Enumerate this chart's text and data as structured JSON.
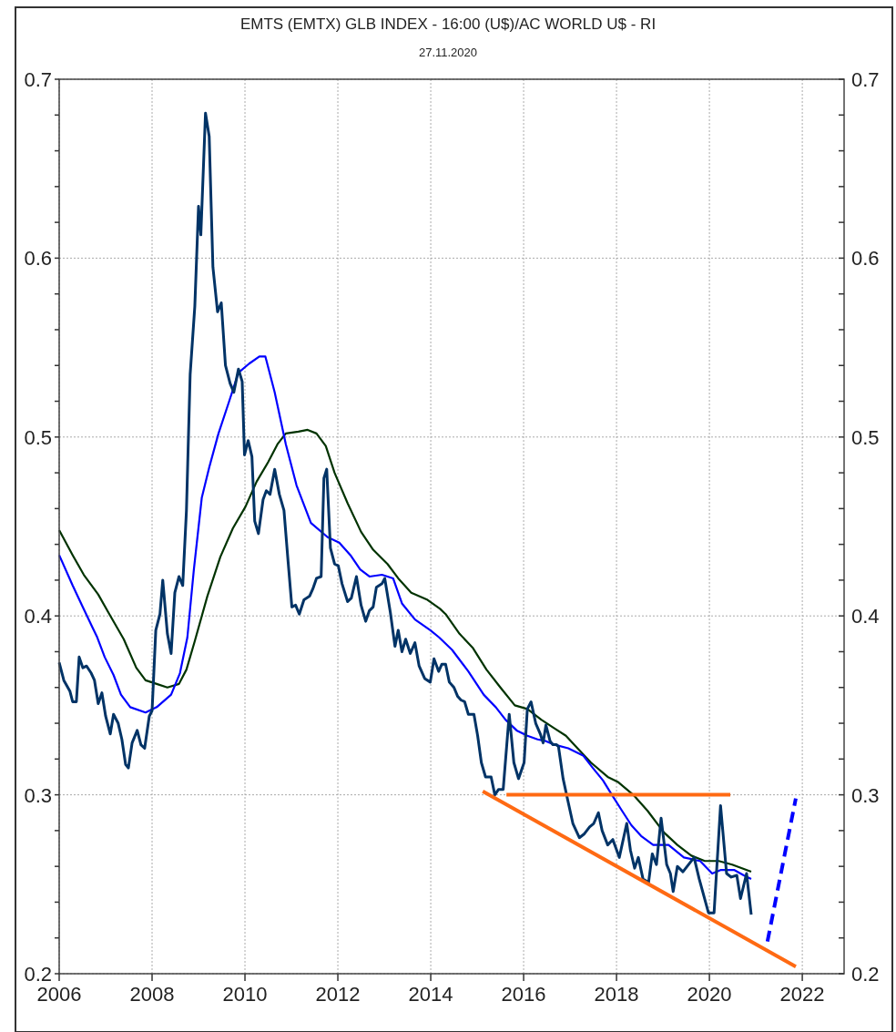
{
  "chart_data": {
    "type": "line",
    "title": "EMTS (EMTX) GLB INDEX - 16:00 (U$)/AC WORLD U$ - RI",
    "subtitle": "27.11.2020",
    "xlim": [
      2006,
      2022.9
    ],
    "xticks": [
      2006,
      2008,
      2010,
      2012,
      2014,
      2016,
      2018,
      2020,
      2022
    ],
    "ylim": [
      0.2,
      0.7
    ],
    "yticks": [
      {
        "value": 0.2,
        "label": "0.2"
      },
      {
        "value": 0.22,
        "label": null
      },
      {
        "value": 0.24,
        "label": null
      },
      {
        "value": 0.26,
        "label": null
      },
      {
        "value": 0.28,
        "label": null
      },
      {
        "value": 0.3,
        "label": "0.3"
      },
      {
        "value": 0.32,
        "label": null
      },
      {
        "value": 0.34,
        "label": null
      },
      {
        "value": 0.36,
        "label": null
      },
      {
        "value": 0.38,
        "label": null
      },
      {
        "value": 0.4,
        "label": "0.4"
      },
      {
        "value": 0.42,
        "label": null
      },
      {
        "value": 0.44,
        "label": null
      },
      {
        "value": 0.46,
        "label": null
      },
      {
        "value": 0.48,
        "label": null
      },
      {
        "value": 0.5,
        "label": "0.5"
      },
      {
        "value": 0.52,
        "label": null
      },
      {
        "value": 0.54,
        "label": null
      },
      {
        "value": 0.56,
        "label": null
      },
      {
        "value": 0.58,
        "label": null
      },
      {
        "value": 0.6,
        "label": "0.6"
      },
      {
        "value": 0.62,
        "label": null
      },
      {
        "value": 0.64,
        "label": null
      },
      {
        "value": 0.66,
        "label": null
      },
      {
        "value": 0.68,
        "label": null
      },
      {
        "value": 0.7,
        "label": "0.7"
      }
    ],
    "y2lim": [
      0.2,
      0.7
    ],
    "y2ticks": [
      {
        "value": 0.2,
        "label": "0.2"
      },
      {
        "value": 0.22,
        "label": null
      },
      {
        "value": 0.24,
        "label": null
      },
      {
        "value": 0.26,
        "label": null
      },
      {
        "value": 0.28,
        "label": null
      },
      {
        "value": 0.3,
        "label": "0.3"
      },
      {
        "value": 0.32,
        "label": null
      },
      {
        "value": 0.34,
        "label": null
      },
      {
        "value": 0.36,
        "label": null
      },
      {
        "value": 0.38,
        "label": null
      },
      {
        "value": 0.4,
        "label": "0.4"
      },
      {
        "value": 0.42,
        "label": null
      },
      {
        "value": 0.44,
        "label": null
      },
      {
        "value": 0.46,
        "label": null
      },
      {
        "value": 0.48,
        "label": null
      },
      {
        "value": 0.5,
        "label": "0.5"
      },
      {
        "value": 0.52,
        "label": null
      },
      {
        "value": 0.54,
        "label": null
      },
      {
        "value": 0.56,
        "label": null
      },
      {
        "value": 0.58,
        "label": null
      },
      {
        "value": 0.6,
        "label": "0.6"
      },
      {
        "value": 0.62,
        "label": null
      },
      {
        "value": 0.64,
        "label": null
      },
      {
        "value": 0.66,
        "label": null
      },
      {
        "value": 0.68,
        "label": null
      },
      {
        "value": 0.7,
        "label": "0.7"
      }
    ],
    "grid": true,
    "marker": "none",
    "series": [
      {
        "color": "#003300",
        "x": [
          2006.0,
          2006.29,
          2006.53,
          2006.84,
          2007.08,
          2007.39,
          2007.66,
          2007.86,
          2008.1,
          2008.33,
          2008.58,
          2008.74,
          2008.92,
          2009.19,
          2009.47,
          2009.74,
          2010.01,
          2010.25,
          2010.5,
          2010.7,
          2010.88,
          2011.15,
          2011.35,
          2011.54,
          2011.74,
          2011.93,
          2012.21,
          2012.5,
          2012.76,
          2013.07,
          2013.3,
          2013.58,
          2013.93,
          2014.2,
          2014.32,
          2014.62,
          2014.91,
          2015.2,
          2015.5,
          2015.81,
          2016.08,
          2016.38,
          2016.67,
          2016.91,
          2017.16,
          2017.45,
          2017.81,
          2018.04,
          2018.36,
          2018.67,
          2019.02,
          2019.31,
          2019.61,
          2019.9,
          2020.2,
          2020.49,
          2020.9
        ],
        "values": [
          0.448,
          0.434,
          0.423,
          0.412,
          0.401,
          0.387,
          0.371,
          0.364,
          0.362,
          0.36,
          0.362,
          0.37,
          0.386,
          0.411,
          0.433,
          0.449,
          0.461,
          0.475,
          0.486,
          0.496,
          0.502,
          0.503,
          0.504,
          0.502,
          0.495,
          0.48,
          0.463,
          0.447,
          0.437,
          0.429,
          0.421,
          0.413,
          0.409,
          0.404,
          0.401,
          0.39,
          0.382,
          0.37,
          0.36,
          0.35,
          0.348,
          0.342,
          0.337,
          0.333,
          0.326,
          0.318,
          0.31,
          0.307,
          0.3,
          0.291,
          0.279,
          0.272,
          0.266,
          0.263,
          0.263,
          0.261,
          0.257
        ]
      },
      {
        "color": "#0000ff",
        "x": [
          2006.0,
          2006.29,
          2006.49,
          2006.69,
          2006.82,
          2006.98,
          2007.17,
          2007.33,
          2007.53,
          2007.86,
          2008.1,
          2008.41,
          2008.6,
          2008.76,
          2008.9,
          2009.07,
          2009.23,
          2009.43,
          2009.66,
          2009.86,
          2010.09,
          2010.31,
          2010.44,
          2010.64,
          2010.88,
          2011.11,
          2011.42,
          2011.78,
          2012.03,
          2012.27,
          2012.48,
          2012.68,
          2012.95,
          2013.19,
          2013.38,
          2013.66,
          2013.99,
          2014.18,
          2014.46,
          2014.81,
          2015.14,
          2015.4,
          2015.61,
          2015.85,
          2016.08,
          2016.3,
          2016.48,
          2016.67,
          2016.96,
          2017.28,
          2017.49,
          2017.71,
          2017.9,
          2018.12,
          2018.32,
          2018.53,
          2018.79,
          2019.12,
          2019.45,
          2019.8,
          2020.06,
          2020.25,
          2020.53,
          2020.74,
          2020.9
        ],
        "values": [
          0.434,
          0.417,
          0.406,
          0.395,
          0.388,
          0.377,
          0.367,
          0.356,
          0.349,
          0.346,
          0.349,
          0.356,
          0.368,
          0.388,
          0.426,
          0.466,
          0.483,
          0.502,
          0.52,
          0.536,
          0.541,
          0.545,
          0.545,
          0.525,
          0.496,
          0.473,
          0.452,
          0.444,
          0.441,
          0.434,
          0.426,
          0.422,
          0.423,
          0.421,
          0.407,
          0.398,
          0.392,
          0.388,
          0.381,
          0.369,
          0.356,
          0.349,
          0.342,
          0.336,
          0.333,
          0.331,
          0.33,
          0.328,
          0.326,
          0.322,
          0.315,
          0.308,
          0.3,
          0.291,
          0.283,
          0.277,
          0.272,
          0.272,
          0.265,
          0.263,
          0.256,
          0.258,
          0.258,
          0.255,
          0.253
        ]
      },
      {
        "color": "#003366",
        "x": [
          2006.0,
          2006.1,
          2006.23,
          2006.29,
          2006.37,
          2006.43,
          2006.51,
          2006.59,
          2006.69,
          2006.76,
          2006.84,
          2006.92,
          2007.0,
          2007.1,
          2007.17,
          2007.27,
          2007.35,
          2007.43,
          2007.49,
          2007.57,
          2007.68,
          2007.76,
          2007.84,
          2007.94,
          2008.0,
          2008.08,
          2008.17,
          2008.23,
          2008.33,
          2008.41,
          2008.49,
          2008.58,
          2008.66,
          2008.74,
          2008.82,
          2008.92,
          2009.0,
          2009.05,
          2009.15,
          2009.23,
          2009.31,
          2009.41,
          2009.49,
          2009.58,
          2009.68,
          2009.76,
          2009.86,
          2009.94,
          2009.99,
          2010.07,
          2010.15,
          2010.21,
          2010.29,
          2010.39,
          2010.46,
          2010.54,
          2010.64,
          2010.74,
          2010.84,
          2010.93,
          2011.01,
          2011.09,
          2011.17,
          2011.27,
          2011.39,
          2011.46,
          2011.54,
          2011.64,
          2011.7,
          2011.76,
          2011.84,
          2011.93,
          2012.01,
          2012.09,
          2012.21,
          2012.29,
          2012.4,
          2012.5,
          2012.6,
          2012.68,
          2012.76,
          2012.83,
          2012.95,
          2013.01,
          2013.13,
          2013.23,
          2013.3,
          2013.38,
          2013.46,
          2013.56,
          2013.66,
          2013.75,
          2013.87,
          2013.99,
          2014.07,
          2014.17,
          2014.24,
          2014.32,
          2014.4,
          2014.5,
          2014.58,
          2014.65,
          2014.73,
          2014.81,
          2014.93,
          2015.01,
          2015.09,
          2015.18,
          2015.3,
          2015.38,
          2015.46,
          2015.56,
          2015.69,
          2015.79,
          2015.89,
          2016.01,
          2016.08,
          2016.16,
          2016.26,
          2016.36,
          2016.42,
          2016.48,
          2016.57,
          2016.63,
          2016.71,
          2016.75,
          2016.85,
          2016.95,
          2017.06,
          2017.2,
          2017.3,
          2017.42,
          2017.51,
          2017.61,
          2017.69,
          2017.81,
          2017.92,
          2018.06,
          2018.22,
          2018.3,
          2018.39,
          2018.47,
          2018.57,
          2018.69,
          2018.77,
          2018.86,
          2018.96,
          2019.08,
          2019.16,
          2019.22,
          2019.31,
          2019.43,
          2019.67,
          2019.78,
          2019.98,
          2020.1,
          2020.24,
          2020.37,
          2020.47,
          2020.59,
          2020.67,
          2020.8,
          2020.9
        ],
        "values": [
          0.374,
          0.364,
          0.358,
          0.352,
          0.352,
          0.377,
          0.371,
          0.372,
          0.368,
          0.364,
          0.351,
          0.357,
          0.344,
          0.334,
          0.345,
          0.34,
          0.331,
          0.317,
          0.315,
          0.329,
          0.336,
          0.328,
          0.326,
          0.344,
          0.347,
          0.392,
          0.401,
          0.42,
          0.39,
          0.379,
          0.413,
          0.422,
          0.417,
          0.459,
          0.535,
          0.573,
          0.629,
          0.613,
          0.681,
          0.668,
          0.595,
          0.57,
          0.575,
          0.54,
          0.53,
          0.525,
          0.538,
          0.531,
          0.49,
          0.498,
          0.489,
          0.453,
          0.446,
          0.465,
          0.47,
          0.468,
          0.482,
          0.468,
          0.459,
          0.43,
          0.405,
          0.406,
          0.401,
          0.409,
          0.411,
          0.415,
          0.421,
          0.422,
          0.477,
          0.482,
          0.438,
          0.429,
          0.428,
          0.418,
          0.408,
          0.41,
          0.422,
          0.406,
          0.397,
          0.403,
          0.405,
          0.416,
          0.418,
          0.421,
          0.402,
          0.383,
          0.392,
          0.38,
          0.387,
          0.379,
          0.385,
          0.372,
          0.365,
          0.363,
          0.376,
          0.369,
          0.373,
          0.373,
          0.363,
          0.36,
          0.355,
          0.353,
          0.352,
          0.345,
          0.345,
          0.333,
          0.318,
          0.31,
          0.31,
          0.3,
          0.303,
          0.303,
          0.345,
          0.318,
          0.309,
          0.318,
          0.348,
          0.352,
          0.34,
          0.334,
          0.329,
          0.339,
          0.33,
          0.328,
          0.328,
          0.327,
          0.309,
          0.297,
          0.284,
          0.276,
          0.278,
          0.282,
          0.284,
          0.29,
          0.28,
          0.272,
          0.275,
          0.265,
          0.284,
          0.269,
          0.259,
          0.265,
          0.253,
          0.251,
          0.267,
          0.261,
          0.287,
          0.261,
          0.256,
          0.246,
          0.26,
          0.257,
          0.265,
          0.253,
          0.234,
          0.234,
          0.294,
          0.256,
          0.254,
          0.255,
          0.242,
          0.256,
          0.233
        ]
      },
      {
        "color": "#ff6a13",
        "x": [
          2015.63,
          2020.45
        ],
        "values": [
          0.3,
          0.3
        ]
      },
      {
        "color": "#ff6a13",
        "x": [
          2015.12,
          2021.86
        ],
        "values": [
          0.302,
          0.204
        ]
      },
      {
        "color": "#0000ff",
        "x": [
          2021.25,
          2021.86
        ],
        "values": [
          0.218,
          0.298
        ],
        "line_style": "dashed"
      }
    ]
  }
}
